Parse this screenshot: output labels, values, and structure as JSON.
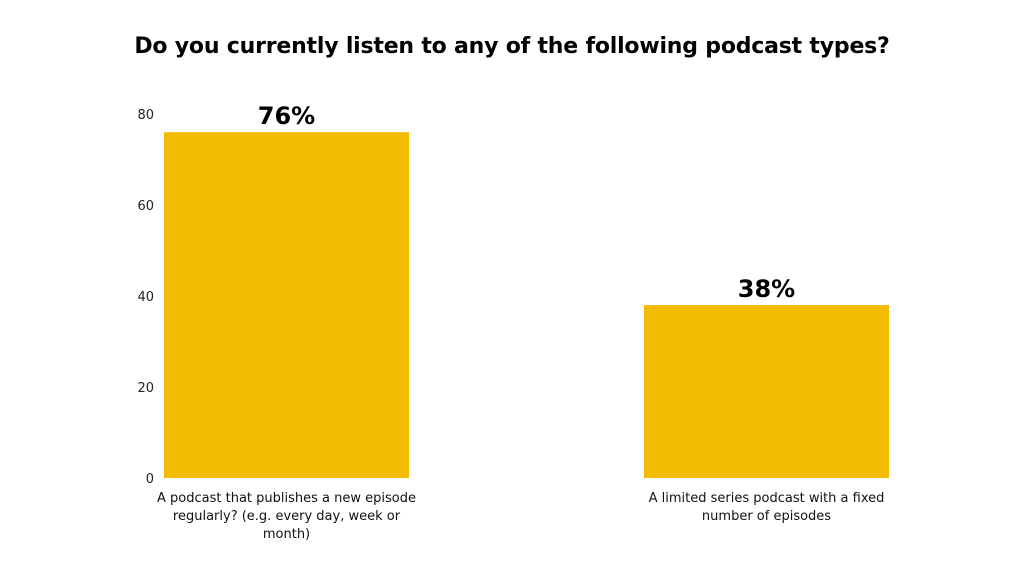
{
  "chart_data": {
    "type": "bar",
    "title": "Do you currently listen to any of the following podcast types?",
    "categories": [
      "A podcast that publishes a new episode regularly? (e.g. every day, week or month)",
      "A limited series podcast with a fixed number of episodes"
    ],
    "values": [
      76,
      38
    ],
    "value_labels": [
      "76%",
      "38%"
    ],
    "ylim": [
      0,
      80
    ],
    "yticks": [
      0,
      20,
      40,
      60,
      80
    ],
    "grid": false,
    "legend": "none",
    "bar_color": "#F4BC00"
  }
}
